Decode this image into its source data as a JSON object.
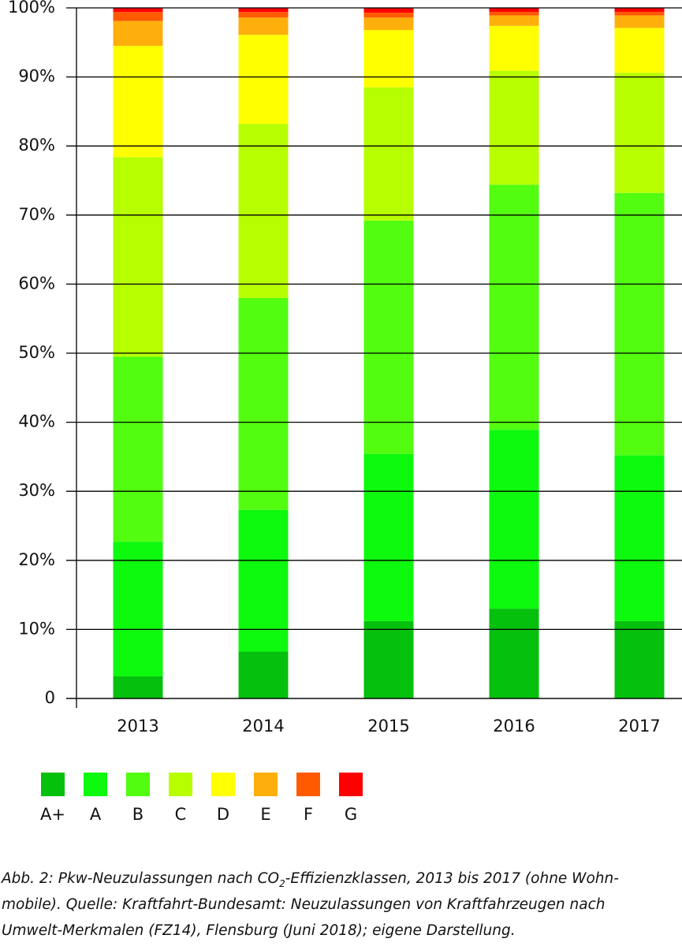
{
  "chart_data": {
    "type": "stacked-bar",
    "categories": [
      "2013",
      "2014",
      "2015",
      "2016",
      "2017"
    ],
    "series": [
      {
        "name": "A+",
        "color": "#05c00c",
        "values": [
          3.2,
          6.8,
          11.2,
          13.0,
          11.2
        ]
      },
      {
        "name": "A",
        "color": "#0df90d",
        "values": [
          19.5,
          20.5,
          24.2,
          25.9,
          24.0
        ]
      },
      {
        "name": "B",
        "color": "#52fd10",
        "values": [
          26.8,
          30.7,
          33.8,
          35.5,
          38.0
        ]
      },
      {
        "name": "C",
        "color": "#b7ff00",
        "values": [
          28.9,
          25.2,
          19.3,
          16.5,
          17.4
        ]
      },
      {
        "name": "D",
        "color": "#ffff00",
        "values": [
          16.1,
          12.9,
          8.3,
          6.5,
          6.5
        ]
      },
      {
        "name": "E",
        "color": "#ffaf0b",
        "values": [
          3.6,
          2.5,
          1.8,
          1.5,
          1.8
        ]
      },
      {
        "name": "F",
        "color": "#ff5a00",
        "values": [
          1.3,
          0.8,
          0.7,
          0.5,
          0.5
        ]
      },
      {
        "name": "G",
        "color": "#ff0000",
        "values": [
          0.6,
          0.6,
          0.7,
          0.6,
          0.6
        ]
      }
    ],
    "ylim": [
      0,
      100
    ],
    "yticks": [
      0,
      {
        "value": 10,
        "label": "10%"
      },
      {
        "value": 20,
        "label": "20%"
      },
      {
        "value": 30,
        "label": "30%"
      },
      {
        "value": 40,
        "label": "40%"
      },
      {
        "value": 50,
        "label": "50%"
      },
      {
        "value": 60,
        "label": "60%"
      },
      {
        "value": 70,
        "label": "70%"
      },
      {
        "value": 80,
        "label": "80%"
      },
      {
        "value": 90,
        "label": "90%"
      },
      {
        "value": 100,
        "label": "100%"
      }
    ],
    "grid": true
  },
  "caption": {
    "line1": [
      "Abb. 2: Pkw-Neuzulassungen nach CO",
      "2",
      "-Effizienzklassen, 2013 bis 2017 (ohne Wohn-"
    ],
    "line2": "mobile). Quelle: Kraftfahrt-Bundesamt: Neuzulassungen von Kraftfahrzeugen nach",
    "line3": "Umwelt-Merkmalen (FZ14), Flensburg (Juni 2018); eigene Darstellung."
  }
}
